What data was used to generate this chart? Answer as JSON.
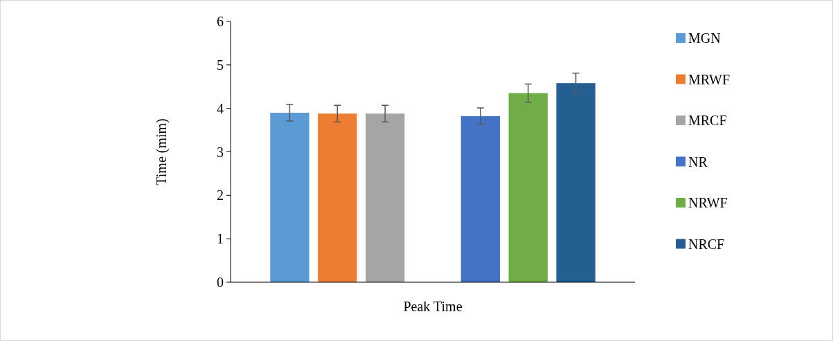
{
  "chart_data": {
    "type": "bar",
    "ylabel": "Time (mim)",
    "categories": [
      "Peak Time"
    ],
    "ylim": [
      0,
      6
    ],
    "yticks": [
      0,
      1,
      2,
      3,
      4,
      5,
      6
    ],
    "grid": false,
    "legend": "right",
    "series": [
      {
        "name": "MGN",
        "color": "#5b9bd5",
        "values": [
          3.9
        ],
        "errors": [
          0.19
        ]
      },
      {
        "name": "MRWF",
        "color": "#ed7d31",
        "values": [
          3.88
        ],
        "errors": [
          0.19
        ]
      },
      {
        "name": "MRCF",
        "color": "#a5a5a5",
        "values": [
          3.88
        ],
        "errors": [
          0.19
        ]
      },
      {
        "values": [
          null
        ]
      },
      {
        "name": "NR",
        "color": "#4472c4",
        "values": [
          3.82
        ],
        "errors": [
          0.19
        ]
      },
      {
        "name": "NRWF",
        "color": "#70ad47",
        "values": [
          4.35
        ],
        "errors": [
          0.21
        ]
      },
      {
        "name": "NRCF",
        "color": "#255e91",
        "values": [
          4.58
        ],
        "errors": [
          0.23
        ]
      }
    ]
  }
}
